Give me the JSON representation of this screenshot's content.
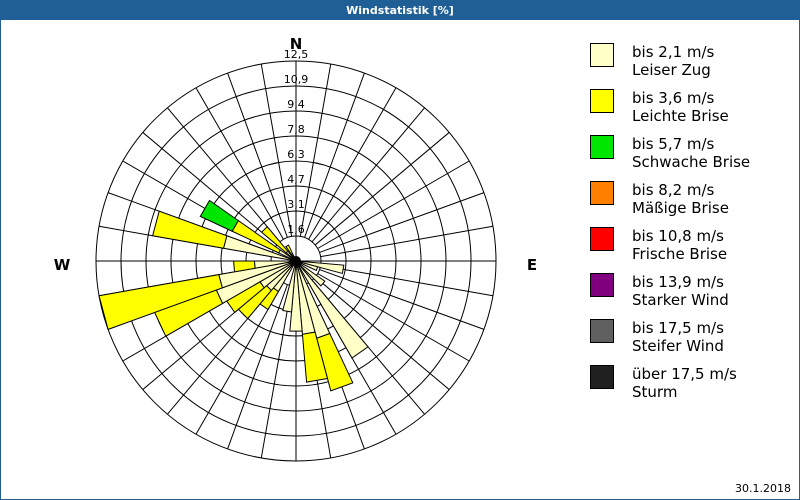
{
  "window": {
    "title": "Windstatistik [%]",
    "date": "30.1.2018"
  },
  "chart_data": {
    "type": "wind-rose",
    "title": "Windstatistik [%]",
    "unit": "%",
    "radial_ticks": [
      "1,6",
      "3,1",
      "4,7",
      "6,3",
      "7,8",
      "9,4",
      "10,9",
      "12,5"
    ],
    "rmax": 12.5,
    "directions": {
      "N": "N",
      "E": "E",
      "S": "S",
      "W": "W"
    },
    "sector_width_deg": 10,
    "categories_speed": [
      "bis 2,1 m/s",
      "bis 3,6 m/s",
      "bis 5,7 m/s"
    ],
    "sectors": [
      {
        "dir": 100,
        "values": [
          3.0,
          0,
          0
        ]
      },
      {
        "dir": 110,
        "values": [
          1.4,
          0,
          0
        ]
      },
      {
        "dir": 130,
        "values": [
          2.2,
          0,
          0
        ]
      },
      {
        "dir": 145,
        "values": [
          7.0,
          0,
          0
        ]
      },
      {
        "dir": 160,
        "values": [
          5.0,
          3.4,
          0
        ]
      },
      {
        "dir": 170,
        "values": [
          4.6,
          3.0,
          0
        ]
      },
      {
        "dir": 180,
        "values": [
          4.4,
          0,
          0
        ]
      },
      {
        "dir": 190,
        "values": [
          3.2,
          0,
          0
        ]
      },
      {
        "dir": 215,
        "values": [
          2.2,
          1.3,
          0
        ]
      },
      {
        "dir": 225,
        "values": [
          2.4,
          2.3,
          0
        ]
      },
      {
        "dir": 235,
        "values": [
          2.6,
          2.4,
          0
        ]
      },
      {
        "dir": 245,
        "values": [
          5.3,
          4.1,
          0
        ]
      },
      {
        "dir": 255,
        "values": [
          4.9,
          7.6,
          0
        ]
      },
      {
        "dir": 265,
        "values": [
          2.6,
          1.3,
          0
        ]
      },
      {
        "dir": 285,
        "values": [
          4.6,
          4.5,
          0
        ]
      },
      {
        "dir": 300,
        "values": [
          1.2,
          3.2,
          2.2
        ]
      },
      {
        "dir": 315,
        "values": [
          0.8,
          2.0,
          0
        ]
      },
      {
        "dir": 330,
        "values": [
          0.5,
          0.6,
          0
        ]
      }
    ],
    "legend": [
      {
        "line1": "bis 2,1 m/s",
        "line2": "Leiser Zug",
        "color": "#ffffc8"
      },
      {
        "line1": "bis 3,6 m/s",
        "line2": "Leichte Brise",
        "color": "#ffff00"
      },
      {
        "line1": "bis 5,7 m/s",
        "line2": "Schwache Brise",
        "color": "#00e600"
      },
      {
        "line1": "bis 8,2 m/s",
        "line2": "Mäßige Brise",
        "color": "#ff8000"
      },
      {
        "line1": "bis 10,8 m/s",
        "line2": "Frische Brise",
        "color": "#ff0000"
      },
      {
        "line1": "bis 13,9 m/s",
        "line2": "Starker Wind",
        "color": "#800080"
      },
      {
        "line1": "bis 17,5 m/s",
        "line2": "Steifer Wind",
        "color": "#606060"
      },
      {
        "line1": "über 17,5 m/s",
        "line2": "Sturm",
        "color": "#202020"
      }
    ]
  }
}
